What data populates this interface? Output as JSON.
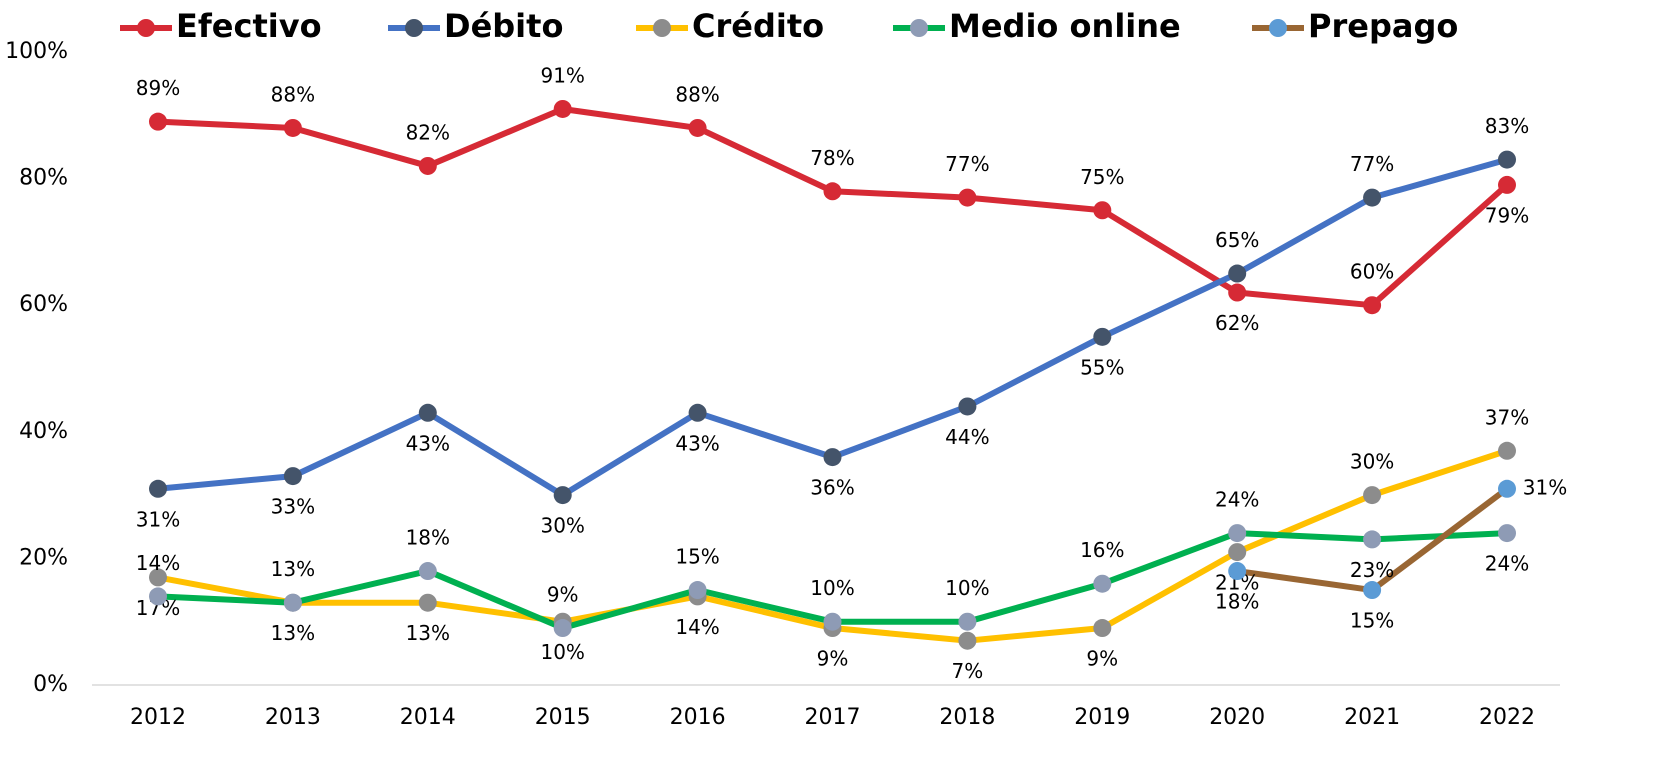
{
  "chart_data": {
    "type": "line",
    "categories": [
      "2012",
      "2013",
      "2014",
      "2015",
      "2016",
      "2017",
      "2018",
      "2019",
      "2020",
      "2021",
      "2022"
    ],
    "ylim": [
      0,
      100
    ],
    "yticks": [
      {
        "value": 0,
        "label": "0%"
      },
      {
        "value": 20,
        "label": "20%"
      },
      {
        "value": 40,
        "label": "40%"
      },
      {
        "value": 60,
        "label": "60%"
      },
      {
        "value": 80,
        "label": "80%"
      },
      {
        "value": 100,
        "label": "100%"
      }
    ],
    "legend": "top",
    "series": [
      {
        "name": "Efectivo",
        "color": "#d62a35",
        "marker_color": "#d62a35",
        "values": [
          89,
          88,
          82,
          91,
          88,
          78,
          77,
          75,
          62,
          60,
          79
        ],
        "value_labels": [
          "89%",
          "88%",
          "82%",
          "91%",
          "88%",
          "78%",
          "77%",
          "75%",
          "62%",
          "60%",
          "79%"
        ]
      },
      {
        "name": "Débito",
        "color": "#4472c4",
        "marker_color": "#44546a",
        "values": [
          31,
          33,
          43,
          30,
          43,
          36,
          44,
          55,
          65,
          77,
          83
        ],
        "value_labels": [
          "31%",
          "33%",
          "43%",
          "30%",
          "43%",
          "36%",
          "44%",
          "55%",
          "65%",
          "77%",
          "83%"
        ]
      },
      {
        "name": "Crédito",
        "color": "#ffc000",
        "marker_color": "#8c8c8c",
        "values": [
          17,
          13,
          13,
          10,
          14,
          9,
          7,
          9,
          21,
          30,
          37
        ],
        "value_labels": [
          "17%",
          "13%",
          "13%",
          "10%",
          "14%",
          "9%",
          "7%",
          "9%",
          "21%",
          "30%",
          "37%"
        ]
      },
      {
        "name": "Medio online",
        "color": "#00b050",
        "marker_color": "#8e9bb5",
        "values": [
          14,
          13,
          18,
          9,
          15,
          10,
          10,
          16,
          24,
          23,
          24
        ],
        "value_labels": [
          "14%",
          "13%",
          "18%",
          "9%",
          "15%",
          "10%",
          "10%",
          "16%",
          "24%",
          "23%",
          "24%"
        ]
      },
      {
        "name": "Prepago",
        "color": "#996633",
        "marker_color": "#5b9bd5",
        "values": [
          null,
          null,
          null,
          null,
          null,
          null,
          null,
          null,
          18,
          15,
          31
        ],
        "value_labels": [
          null,
          null,
          null,
          null,
          null,
          null,
          null,
          null,
          "18%",
          "15%",
          "31%"
        ]
      }
    ]
  }
}
